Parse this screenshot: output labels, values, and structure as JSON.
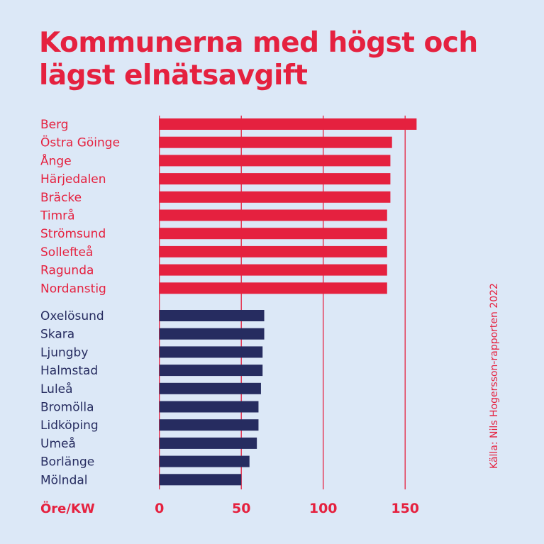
{
  "title": "Kommunerna med högst och lägst elnätsavgift",
  "source": "Källa: Nils Hogersson-rapporten 2022",
  "colors": {
    "background": "#dce8f7",
    "high": "#e5213f",
    "low": "#262c60",
    "grid": "#e5213f"
  },
  "chart_data": {
    "type": "bar",
    "orientation": "horizontal",
    "title": "Kommunerna med högst och lägst elnätsavgift",
    "xlabel": "Öre/KW",
    "xlim": [
      0,
      160
    ],
    "xticks": [
      0,
      50,
      100,
      150
    ],
    "grid": true,
    "groups": [
      {
        "color": "#e5213f",
        "categories": [
          "Berg",
          "Östra Göinge",
          "Ånge",
          "Härjedalen",
          "Bräcke",
          "Timrå",
          "Strömsund",
          "Sollefteå",
          "Ragunda",
          "Nordanstig"
        ],
        "values": [
          157,
          142,
          141,
          141,
          141,
          139,
          139,
          139,
          139,
          139
        ]
      },
      {
        "color": "#262c60",
        "categories": [
          "Oxelösund",
          "Skara",
          "Ljungby",
          "Halmstad",
          "Luleå",
          "Bromölla",
          "Lidköping",
          "Umeå",
          "Borlänge",
          "Mölndal"
        ],
        "values": [
          64,
          64,
          63,
          63,
          62,
          60.5,
          60.5,
          59.5,
          55,
          50
        ]
      }
    ]
  }
}
